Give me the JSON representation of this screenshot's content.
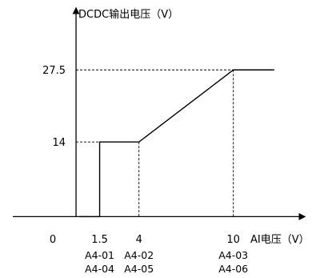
{
  "chart_data": {
    "type": "line",
    "ylabel": "DCDC输出电压（V）",
    "xlabel": "AI电压（V）",
    "origin_label": "0",
    "x_ticks": [
      {
        "value": 1.5,
        "label": "1.5",
        "params": [
          "A4-01",
          "A4-04"
        ]
      },
      {
        "value": 4,
        "label": "4",
        "params": [
          "A4-02",
          "A4-05"
        ]
      },
      {
        "value": 10,
        "label": "10",
        "params": [
          "A4-03",
          "A4-06"
        ]
      }
    ],
    "y_ticks": [
      {
        "value": 14,
        "label": "14"
      },
      {
        "value": 27.5,
        "label": "27.5"
      }
    ],
    "series": [
      {
        "x": [
          1.5,
          1.5,
          4,
          10,
          12.6
        ],
        "y": [
          0,
          14,
          14,
          27.5,
          27.5
        ]
      }
    ],
    "baseline_segment": {
      "x": [
        0.2,
        1.5
      ],
      "y": [
        0,
        0
      ]
    },
    "xlim": [
      -2.8,
      15.0
    ],
    "ylim": [
      -8.2,
      40.6
    ],
    "grid": false,
    "legend": "none",
    "colors": {
      "line": "#000000",
      "axes": "#000000",
      "guides": "#000000"
    }
  }
}
